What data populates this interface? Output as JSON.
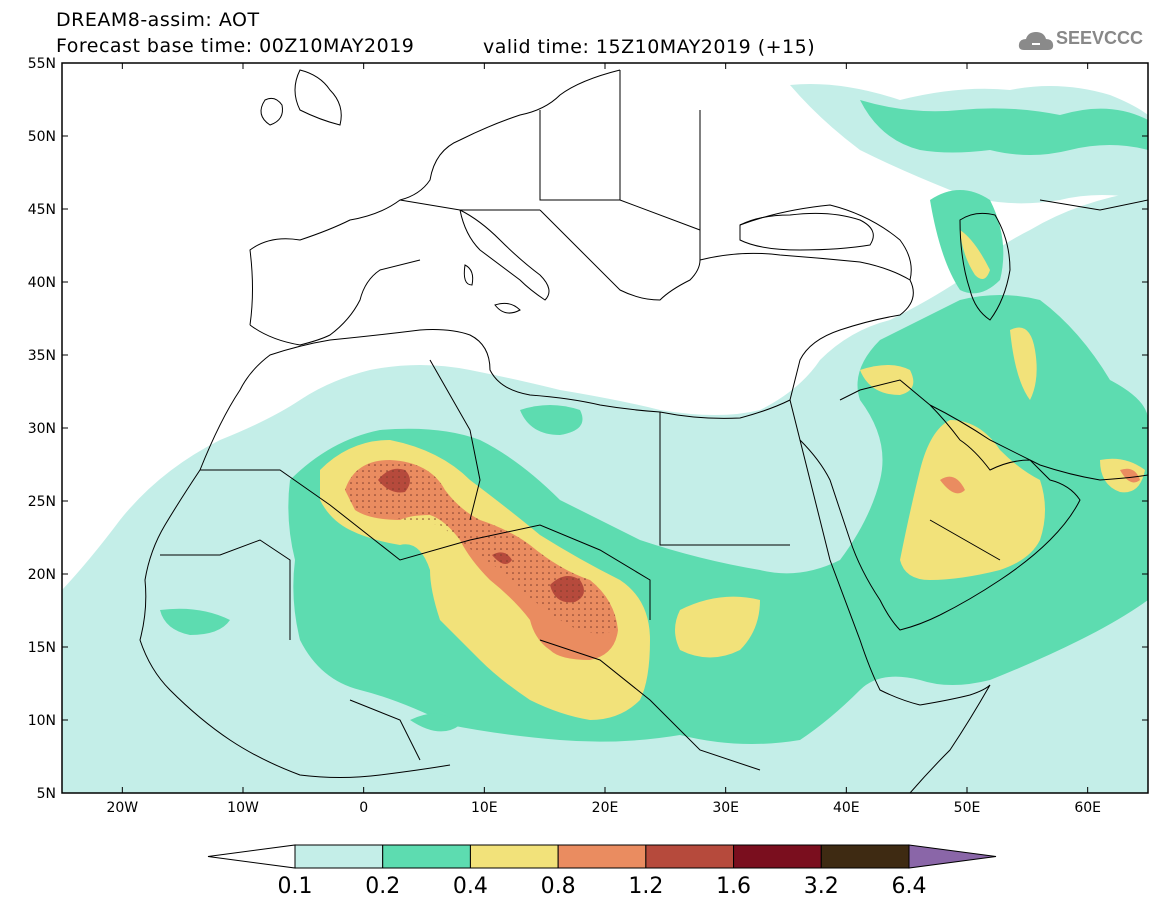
{
  "header": {
    "title_line1": "DREAM8-assim: AOT",
    "title_line2": "Forecast base time: 00Z10MAY2019",
    "valid_time": "valid time: 15Z10MAY2019 (+15)",
    "logo_text": "SEEVCCC"
  },
  "axes": {
    "lat_labels": [
      "55N",
      "50N",
      "45N",
      "40N",
      "35N",
      "30N",
      "25N",
      "20N",
      "15N",
      "10N",
      "5N"
    ],
    "lon_labels": [
      "20W",
      "10W",
      "0",
      "10E",
      "20E",
      "30E",
      "40E",
      "50E",
      "60E"
    ],
    "lat_range": [
      5,
      55
    ],
    "lon_range": [
      -25,
      65
    ]
  },
  "colorbar": {
    "labels": [
      "0.1",
      "0.2",
      "0.4",
      "0.8",
      "1.2",
      "1.6",
      "3.2",
      "6.4"
    ],
    "colors": [
      "#ffffff",
      "#c4eee8",
      "#5ddcb0",
      "#f2e27a",
      "#ea8c60",
      "#b64a3c",
      "#7a0e1e",
      "#3e2a12",
      "#8a66a8"
    ]
  },
  "colors": {
    "lev1": "#c4eee8",
    "lev2": "#5ddcb0",
    "lev3": "#f2e27a",
    "lev4": "#ea8c60",
    "lev5": "#b64a3c"
  }
}
